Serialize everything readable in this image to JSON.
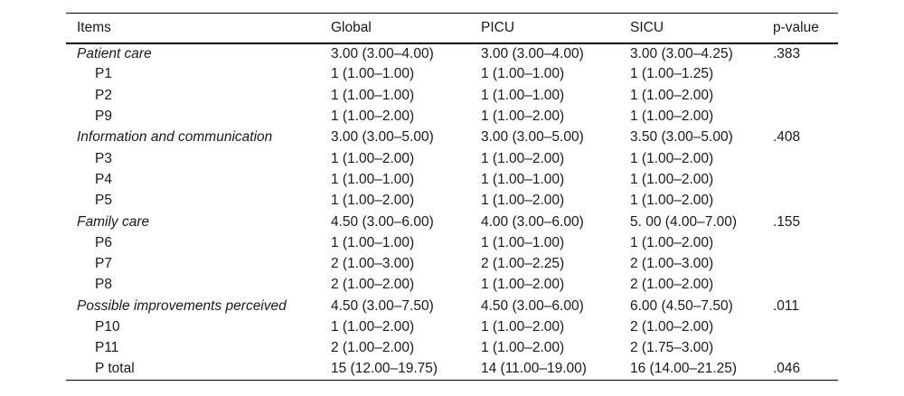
{
  "table": {
    "headers": {
      "items": "Items",
      "global": "Global",
      "picu": "PICU",
      "sicu": "SICU",
      "p_value": "p-value"
    },
    "rows": [
      {
        "label": "Patient care",
        "global": "3.00 (3.00–4.00)",
        "picu": "3.00 (3.00–4.00)",
        "sicu": "3.00 (3.00–4.25)",
        "p": ".383"
      },
      {
        "label": "P1",
        "global": "1 (1.00–1.00)",
        "picu": "1 (1.00–1.00)",
        "sicu": "1 (1.00–1.25)",
        "p": ""
      },
      {
        "label": "P2",
        "global": "1 (1.00–1.00)",
        "picu": "1 (1.00–1.00)",
        "sicu": "1 (1.00–2.00)",
        "p": ""
      },
      {
        "label": "P9",
        "global": "1 (1.00–2.00)",
        "picu": "1 (1.00–2.00)",
        "sicu": "1 (1.00–2.00)",
        "p": ""
      },
      {
        "label": "Information and communication",
        "global": "3.00 (3.00–5.00)",
        "picu": "3.00 (3.00–5.00)",
        "sicu": "3.50 (3.00–5.00)",
        "p": ".408"
      },
      {
        "label": "P3",
        "global": "1 (1.00–2.00)",
        "picu": "1 (1.00–2.00)",
        "sicu": "1 (1.00–2.00)",
        "p": ""
      },
      {
        "label": "P4",
        "global": "1 (1.00–1.00)",
        "picu": "1 (1.00–1.00)",
        "sicu": "1 (1.00–2.00)",
        "p": ""
      },
      {
        "label": "P5",
        "global": "1 (1.00–2.00)",
        "picu": "1 (1.00–2.00)",
        "sicu": "1 (1.00–2.00)",
        "p": ""
      },
      {
        "label": "Family care",
        "global": "4.50 (3.00–6.00)",
        "picu": "4.00 (3.00–6.00)",
        "sicu": "5. 00 (4.00–7.00)",
        "p": ".155"
      },
      {
        "label": "P6",
        "global": "1 (1.00–1.00)",
        "picu": "1 (1.00–1.00)",
        "sicu": "1 (1.00–2.00)",
        "p": ""
      },
      {
        "label": "P7",
        "global": "2 (1.00–3.00)",
        "picu": "2 (1.00–2.25)",
        "sicu": "2 (1.00–3.00)",
        "p": ""
      },
      {
        "label": "P8",
        "global": "2 (1.00–2.00)",
        "picu": "1 (1.00–2.00)",
        "sicu": "2 (1.00–2.00)",
        "p": ""
      },
      {
        "label": "Possible improvements perceived",
        "global": "4.50 (3.00–7.50)",
        "picu": "4.50 (3.00–6.00)",
        "sicu": "6.00 (4.50–7.50)",
        "p": ".011"
      },
      {
        "label": "P10",
        "global": "1 (1.00–2.00)",
        "picu": "1 (1.00–2.00)",
        "sicu": "2 (1.00–2.00)",
        "p": ""
      },
      {
        "label": "P11",
        "global": "2 (1.00–2.00)",
        "picu": "1 (1.00–2.00)",
        "sicu": "2 (1.75–3.00)",
        "p": ""
      },
      {
        "label": "P total",
        "global": "15 (12.00–19.75)",
        "picu": "14 (11.00–19.00)",
        "sicu": "16 (14.00–21.25)",
        "p": ".046"
      }
    ]
  }
}
